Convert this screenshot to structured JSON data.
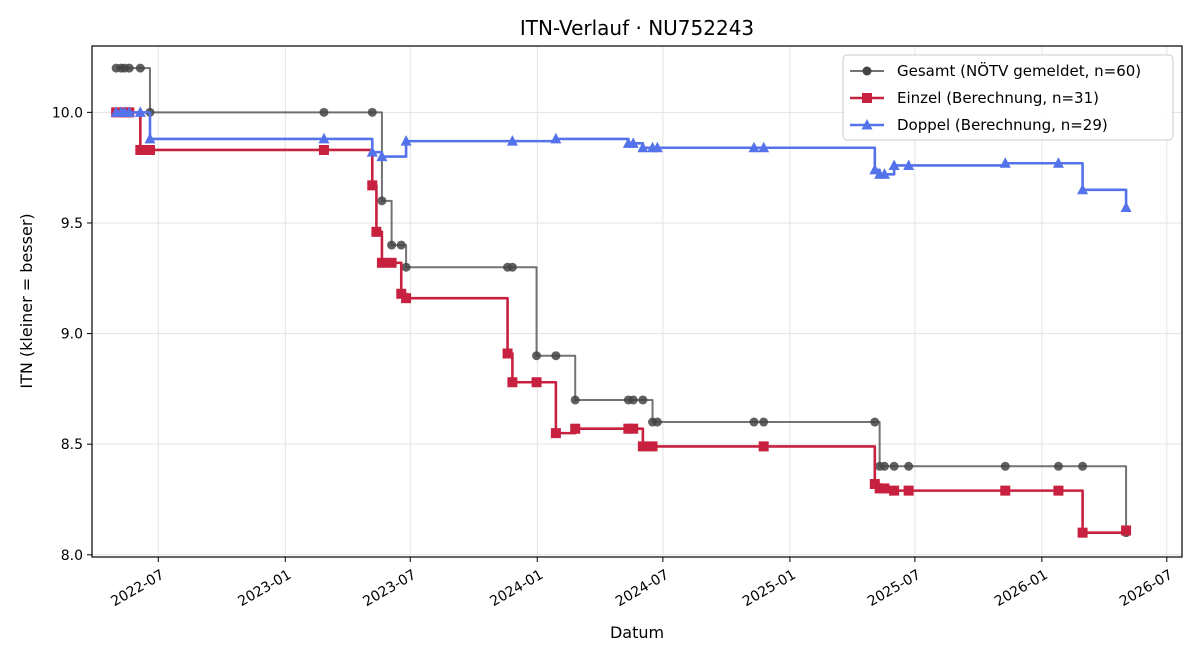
{
  "chart_data": {
    "type": "line",
    "title": "ITN-Verlauf · NU752243",
    "xlabel": "Datum",
    "ylabel": "ITN  (kleiner = besser)",
    "xlim": [
      "2022-03-27",
      "2026-07-23"
    ],
    "ylim": [
      7.99,
      10.3
    ],
    "x_ticks": [
      "2022-07",
      "2023-01",
      "2023-07",
      "2024-01",
      "2024-07",
      "2025-01",
      "2025-07",
      "2026-01",
      "2026-07"
    ],
    "y_ticks": [
      8.0,
      8.5,
      9.0,
      9.5,
      10.0
    ],
    "grid": true,
    "legend_position": "top-right",
    "series": [
      {
        "name": "Gesamt (NÖTV gemeldet, n=60)",
        "color": "#444444",
        "marker": "circle",
        "points": [
          [
            "2022-05-01",
            10.2
          ],
          [
            "2022-05-08",
            10.2
          ],
          [
            "2022-05-13",
            10.2
          ],
          [
            "2022-05-20",
            10.2
          ],
          [
            "2022-06-05",
            10.2
          ],
          [
            "2022-06-19",
            10.0
          ],
          [
            "2023-02-26",
            10.0
          ],
          [
            "2023-05-07",
            10.0
          ],
          [
            "2023-05-21",
            9.6
          ],
          [
            "2023-06-04",
            9.4
          ],
          [
            "2023-06-18",
            9.4
          ],
          [
            "2023-06-25",
            9.3
          ],
          [
            "2023-11-19",
            9.3
          ],
          [
            "2023-11-26",
            9.3
          ],
          [
            "2023-12-31",
            8.9
          ],
          [
            "2024-01-28",
            8.9
          ],
          [
            "2024-02-25",
            8.7
          ],
          [
            "2024-05-12",
            8.7
          ],
          [
            "2024-05-19",
            8.7
          ],
          [
            "2024-06-02",
            8.7
          ],
          [
            "2024-06-16",
            8.6
          ],
          [
            "2024-06-23",
            8.6
          ],
          [
            "2024-11-10",
            8.6
          ],
          [
            "2024-11-24",
            8.6
          ],
          [
            "2025-05-04",
            8.6
          ],
          [
            "2025-05-11",
            8.4
          ],
          [
            "2025-05-18",
            8.4
          ],
          [
            "2025-06-01",
            8.4
          ],
          [
            "2025-06-22",
            8.4
          ],
          [
            "2025-11-09",
            8.4
          ],
          [
            "2026-01-25",
            8.4
          ],
          [
            "2026-03-01",
            8.4
          ],
          [
            "2026-05-03",
            8.1
          ]
        ]
      },
      {
        "name": "Einzel (Berechnung, n=31)",
        "color": "#c8203f",
        "marker": "square",
        "points": [
          [
            "2022-05-01",
            10.0
          ],
          [
            "2022-05-13",
            10.0
          ],
          [
            "2022-05-20",
            10.0
          ],
          [
            "2022-06-05",
            9.83
          ],
          [
            "2022-06-19",
            9.83
          ],
          [
            "2023-02-26",
            9.83
          ],
          [
            "2023-05-07",
            9.67
          ],
          [
            "2023-05-13",
            9.46
          ],
          [
            "2023-05-21",
            9.32
          ],
          [
            "2023-06-04",
            9.32
          ],
          [
            "2023-06-18",
            9.18
          ],
          [
            "2023-06-25",
            9.16
          ],
          [
            "2023-11-19",
            8.91
          ],
          [
            "2023-11-26",
            8.78
          ],
          [
            "2023-12-31",
            8.78
          ],
          [
            "2024-01-28",
            8.55
          ],
          [
            "2024-02-25",
            8.57
          ],
          [
            "2024-05-12",
            8.57
          ],
          [
            "2024-05-19",
            8.57
          ],
          [
            "2024-06-02",
            8.49
          ],
          [
            "2024-06-16",
            8.49
          ],
          [
            "2024-11-24",
            8.49
          ],
          [
            "2025-05-04",
            8.32
          ],
          [
            "2025-05-11",
            8.3
          ],
          [
            "2025-05-18",
            8.3
          ],
          [
            "2025-06-01",
            8.29
          ],
          [
            "2025-06-22",
            8.29
          ],
          [
            "2025-11-09",
            8.29
          ],
          [
            "2026-01-25",
            8.29
          ],
          [
            "2026-03-01",
            8.1
          ],
          [
            "2026-05-03",
            8.11
          ]
        ]
      },
      {
        "name": "Doppel (Berechnung, n=29)",
        "color": "#5472ea",
        "marker": "triangle",
        "points": [
          [
            "2022-05-01",
            10.0
          ],
          [
            "2022-05-08",
            10.0
          ],
          [
            "2022-05-13",
            10.0
          ],
          [
            "2022-05-20",
            10.0
          ],
          [
            "2022-06-05",
            10.0
          ],
          [
            "2022-06-19",
            9.88
          ],
          [
            "2023-02-26",
            9.88
          ],
          [
            "2023-05-07",
            9.82
          ],
          [
            "2023-05-21",
            9.8
          ],
          [
            "2023-06-25",
            9.87
          ],
          [
            "2023-11-26",
            9.87
          ],
          [
            "2024-01-28",
            9.88
          ],
          [
            "2024-05-12",
            9.86
          ],
          [
            "2024-05-19",
            9.86
          ],
          [
            "2024-06-02",
            9.84
          ],
          [
            "2024-06-16",
            9.84
          ],
          [
            "2024-06-23",
            9.84
          ],
          [
            "2024-11-10",
            9.84
          ],
          [
            "2024-11-24",
            9.84
          ],
          [
            "2025-05-04",
            9.74
          ],
          [
            "2025-05-11",
            9.72
          ],
          [
            "2025-05-18",
            9.72
          ],
          [
            "2025-06-01",
            9.76
          ],
          [
            "2025-06-22",
            9.76
          ],
          [
            "2025-11-09",
            9.77
          ],
          [
            "2026-01-25",
            9.77
          ],
          [
            "2026-03-01",
            9.65
          ],
          [
            "2026-05-03",
            9.57
          ]
        ]
      }
    ]
  }
}
